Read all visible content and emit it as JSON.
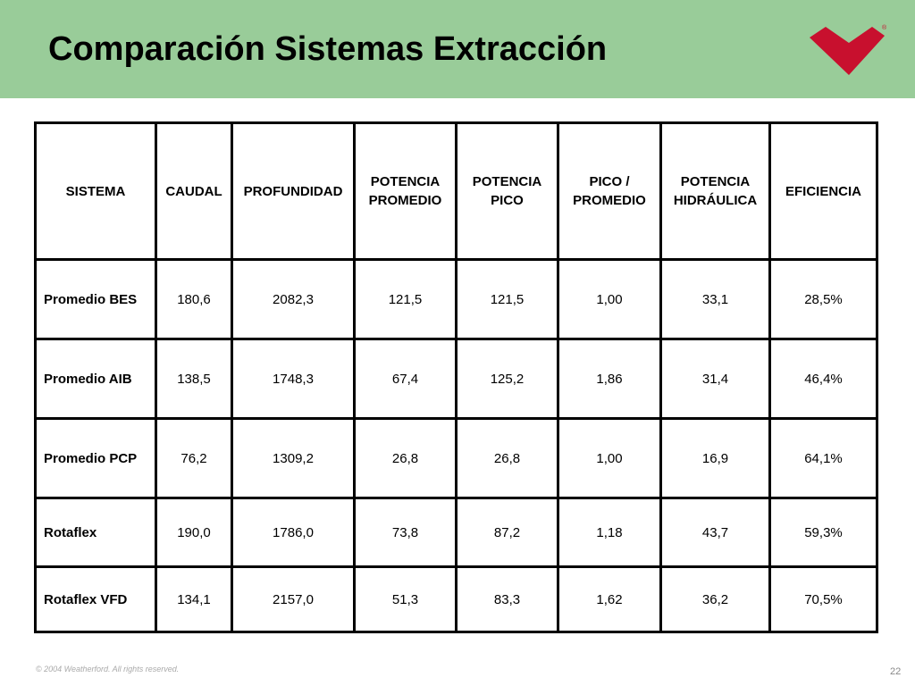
{
  "slide": {
    "title": "Comparación Sistemas Extracción",
    "page_number": "22",
    "copyright": "© 2004 Weatherford. All rights reserved."
  },
  "logo": {
    "mark": "®",
    "color": "#c8102e"
  },
  "colors": {
    "header_band": "#99cc99"
  },
  "table": {
    "headers": [
      "SISTEMA",
      "CAUDAL",
      "PROFUNDIDAD",
      "POTENCIA PROMEDIO",
      "POTENCIA PICO",
      "PICO / PROMEDIO",
      "POTENCIA HIDRÁULICA",
      "EFICIENCIA"
    ],
    "rows": [
      [
        "Promedio BES",
        "180,6",
        "2082,3",
        "121,5",
        "121,5",
        "1,00",
        "33,1",
        "28,5%"
      ],
      [
        "Promedio AIB",
        "138,5",
        "1748,3",
        "67,4",
        "125,2",
        "1,86",
        "31,4",
        "46,4%"
      ],
      [
        "Promedio PCP",
        "76,2",
        "1309,2",
        "26,8",
        "26,8",
        "1,00",
        "16,9",
        "64,1%"
      ],
      [
        "Rotaflex",
        "190,0",
        "1786,0",
        "73,8",
        "87,2",
        "1,18",
        "43,7",
        "59,3%"
      ],
      [
        "Rotaflex VFD",
        "134,1",
        "2157,0",
        "51,3",
        "83,3",
        "1,62",
        "36,2",
        "70,5%"
      ]
    ]
  }
}
